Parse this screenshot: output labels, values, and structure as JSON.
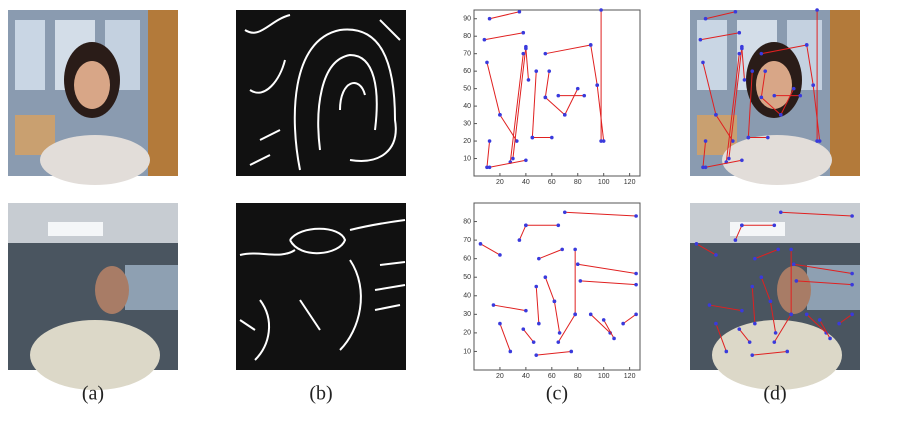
{
  "figure": {
    "captions": [
      "(a)",
      "(b)",
      "(c)",
      "(d)"
    ],
    "plots": [
      {
        "xlim": [
          0,
          128
        ],
        "ylim": [
          0,
          95
        ],
        "xticks": [
          20,
          40,
          60,
          80,
          100,
          120
        ],
        "yticks": [
          10,
          20,
          30,
          40,
          50,
          60,
          70,
          80,
          90
        ],
        "segments": [
          [
            12,
            90,
            35,
            94
          ],
          [
            8,
            78,
            38,
            82
          ],
          [
            10,
            65,
            20,
            35
          ],
          [
            20,
            35,
            33,
            20
          ],
          [
            30,
            10,
            40,
            74
          ],
          [
            28,
            8,
            38,
            70
          ],
          [
            40,
            73,
            42,
            55
          ],
          [
            48,
            60,
            45,
            22
          ],
          [
            45,
            22,
            60,
            22
          ],
          [
            55,
            70,
            90,
            75
          ],
          [
            90,
            75,
            95,
            52
          ],
          [
            95,
            52,
            100,
            20
          ],
          [
            58,
            60,
            55,
            45
          ],
          [
            55,
            45,
            70,
            35
          ],
          [
            70,
            35,
            80,
            50
          ],
          [
            65,
            46,
            85,
            46
          ],
          [
            98,
            95,
            98,
            20
          ],
          [
            12,
            20,
            10,
            5
          ],
          [
            12,
            5,
            40,
            9
          ]
        ]
      },
      {
        "xlim": [
          0,
          128
        ],
        "ylim": [
          0,
          90
        ],
        "xticks": [
          20,
          40,
          60,
          80,
          100,
          120
        ],
        "yticks": [
          10,
          20,
          30,
          40,
          50,
          60,
          70,
          80
        ],
        "segments": [
          [
            20,
            62,
            5,
            68
          ],
          [
            35,
            70,
            40,
            78
          ],
          [
            40,
            78,
            65,
            78
          ],
          [
            50,
            60,
            68,
            65
          ],
          [
            70,
            85,
            125,
            83
          ],
          [
            78,
            65,
            78,
            30
          ],
          [
            78,
            30,
            65,
            15
          ],
          [
            80,
            57,
            125,
            52
          ],
          [
            82,
            48,
            125,
            46
          ],
          [
            15,
            35,
            40,
            32
          ],
          [
            20,
            25,
            28,
            10
          ],
          [
            48,
            45,
            50,
            25
          ],
          [
            38,
            22,
            46,
            15
          ],
          [
            55,
            50,
            62,
            37
          ],
          [
            62,
            37,
            66,
            20
          ],
          [
            90,
            30,
            105,
            20
          ],
          [
            100,
            27,
            108,
            17
          ],
          [
            115,
            25,
            125,
            30
          ],
          [
            48,
            8,
            75,
            10
          ]
        ]
      }
    ]
  }
}
